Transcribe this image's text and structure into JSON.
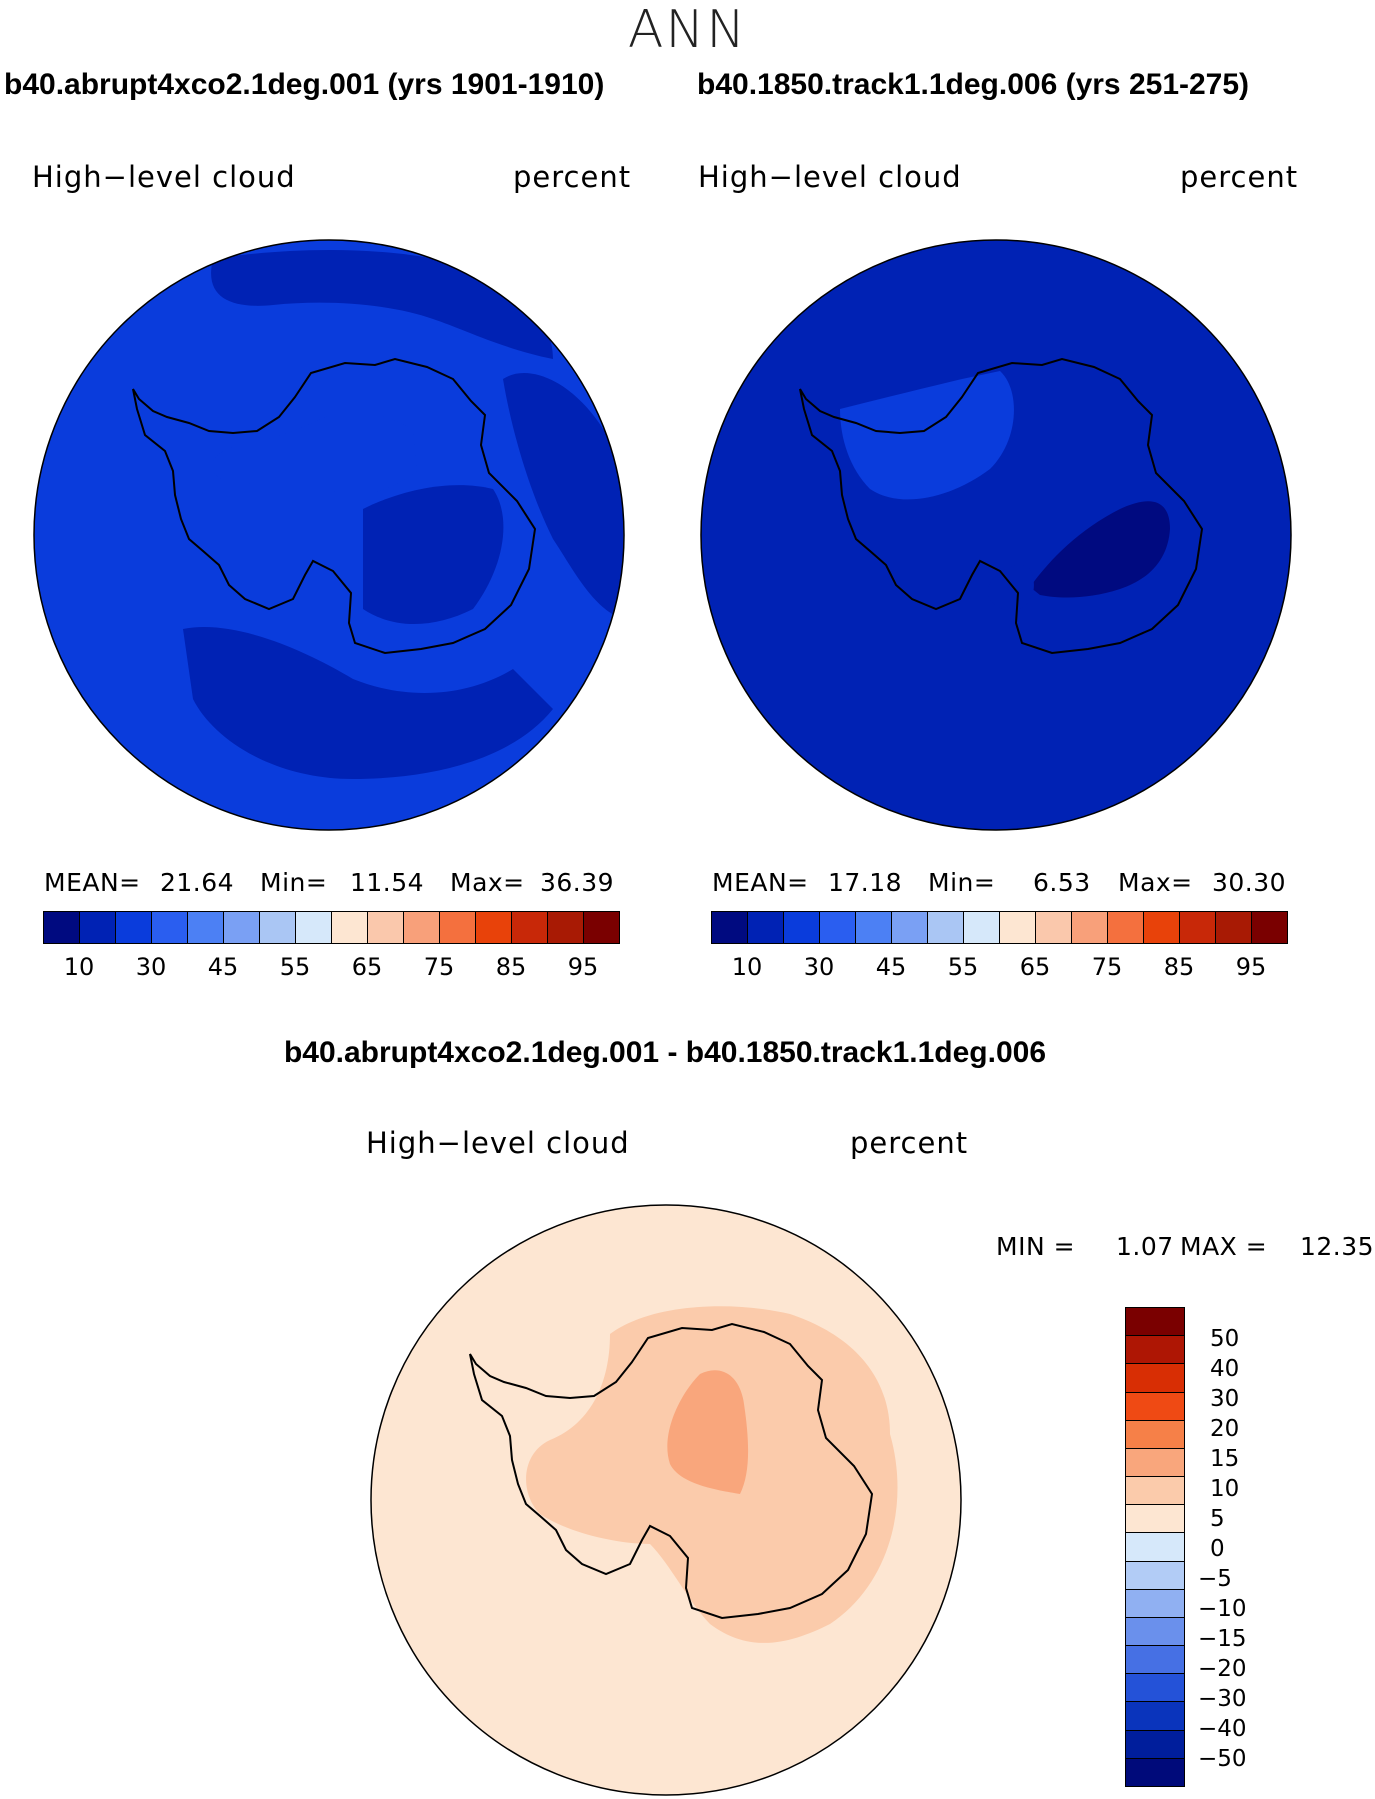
{
  "header": {
    "season": "ANN"
  },
  "colors": {
    "abs_scale": [
      "#000a80",
      "#0022b4",
      "#0a3cdc",
      "#2a5ef0",
      "#4c80f4",
      "#7aa0f4",
      "#aac6f4",
      "#d6e8fa",
      "#fde6d2",
      "#fac8ac",
      "#f8a07a",
      "#f4703e",
      "#e8420a",
      "#c82808",
      "#a81a04",
      "#7a0000"
    ],
    "diff_scale": [
      "#7a0000",
      "#ae1604",
      "#d82e04",
      "#ef4a14",
      "#f68048",
      "#f9a67c",
      "#fbcbab",
      "#fde6d2",
      "#d6e8fa",
      "#b2ccf6",
      "#90b0f2",
      "#6a90ec",
      "#4670e4",
      "#2452d8",
      "#0a34bc",
      "#001e9c",
      "#000a7a"
    ],
    "coast": "#000000"
  },
  "chart_data": [
    {
      "type": "heatmap",
      "projection": "south-polar-stereographic",
      "title": "b40.abrupt4xco2.1deg.001 (yrs 1901-1910)",
      "variable_label": "High−level cloud",
      "units_label": "percent",
      "stats": {
        "mean_label": "MEAN=",
        "mean": "21.64",
        "min_label": "Min=",
        "min": "11.54",
        "max_label": "Max=",
        "max": "36.39"
      },
      "levels": [
        5,
        10,
        20,
        30,
        40,
        45,
        50,
        55,
        60,
        65,
        70,
        75,
        80,
        85,
        90,
        95
      ],
      "colorbar_ticks": [
        "10",
        "30",
        "45",
        "55",
        "65",
        "75",
        "85",
        "95"
      ],
      "region_values": {
        "ocean": 22,
        "southern_ocean_band": 16,
        "east_antarctica": 18,
        "west_antarctica_plateau": 28,
        "ice_shelf_margin": 24
      }
    },
    {
      "type": "heatmap",
      "projection": "south-polar-stereographic",
      "title": "b40.1850.track1.1deg.006 (yrs 251-275)",
      "variable_label": "High−level cloud",
      "units_label": "percent",
      "stats": {
        "mean_label": "MEAN=",
        "mean": "17.18",
        "min_label": "Min=",
        "min": "6.53",
        "max_label": "Max=",
        "max": "30.30"
      },
      "levels": [
        5,
        10,
        20,
        30,
        40,
        45,
        50,
        55,
        60,
        65,
        70,
        75,
        80,
        85,
        90,
        95
      ],
      "colorbar_ticks": [
        "10",
        "30",
        "45",
        "55",
        "65",
        "75",
        "85",
        "95"
      ],
      "region_values": {
        "ocean": 18,
        "east_antarctica_low": 8,
        "wilkes_land": 12,
        "west_antarctica": 20
      }
    },
    {
      "type": "heatmap",
      "projection": "south-polar-stereographic",
      "title": "b40.abrupt4xco2.1deg.001 - b40.1850.track1.1deg.006",
      "variable_label": "High−level cloud",
      "units_label": "percent",
      "stats": {
        "min_label": "MIN =",
        "min": "1.07",
        "max_label": "MAX =",
        "max": "12.35"
      },
      "levels": [
        50,
        40,
        30,
        20,
        15,
        10,
        5,
        0,
        -5,
        -10,
        -15,
        -20,
        -30,
        -40,
        -50
      ],
      "colorbar_ticks": [
        "50",
        "40",
        "30",
        "20",
        "15",
        "10",
        "5",
        "0",
        "−5",
        "−10",
        "−15",
        "−20",
        "−30",
        "−40",
        "−50"
      ],
      "region_values": {
        "ocean": 3,
        "antarctica": 7,
        "east_plateau_max": 12
      }
    }
  ]
}
